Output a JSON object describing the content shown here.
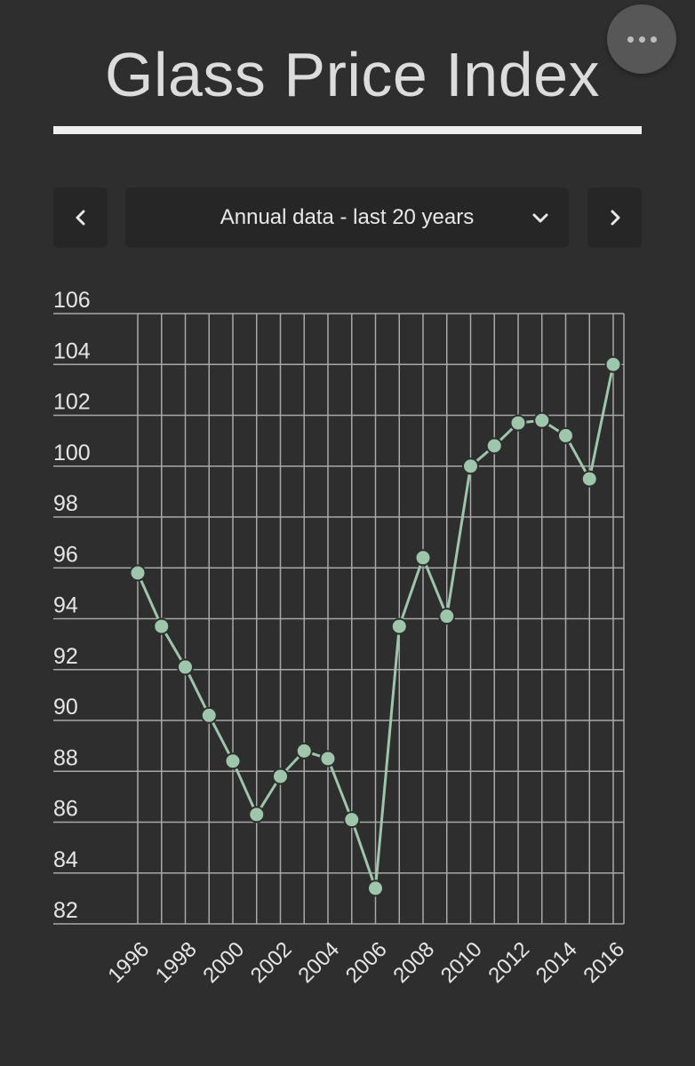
{
  "header": {
    "title": "Glass Price Index"
  },
  "controls": {
    "period_label": "Annual data - last 20 years",
    "prev_icon": "chevron-left-icon",
    "next_icon": "chevron-right-icon",
    "dropdown_icon": "chevron-down-icon",
    "more_icon": "more-horizontal-icon"
  },
  "colors": {
    "background": "#2e2e2e",
    "series": "#9ec6ab",
    "grid": "#a8a8a8"
  },
  "chart_data": {
    "type": "line",
    "title": "",
    "xlabel": "",
    "ylabel": "",
    "x": [
      1996,
      1997,
      1998,
      1999,
      2000,
      2001,
      2002,
      2003,
      2004,
      2005,
      2006,
      2007,
      2008,
      2009,
      2010,
      2011,
      2012,
      2013,
      2014,
      2015,
      2016
    ],
    "series": [
      {
        "values": [
          95.8,
          93.7,
          92.1,
          90.2,
          88.4,
          86.3,
          87.8,
          88.8,
          88.5,
          86.1,
          83.4,
          93.7,
          96.4,
          94.1,
          100.0,
          100.8,
          101.7,
          101.8,
          101.2,
          99.5,
          104.0
        ]
      }
    ],
    "x_ticks": [
      "1996",
      "1998",
      "2000",
      "2002",
      "2004",
      "2006",
      "2008",
      "2010",
      "2012",
      "2014",
      "2016"
    ],
    "y_ticks": [
      "82",
      "84",
      "86",
      "88",
      "90",
      "92",
      "94",
      "96",
      "98",
      "100",
      "102",
      "104",
      "106"
    ],
    "xlim": [
      1996,
      2016
    ],
    "ylim": [
      82,
      106
    ],
    "grid": true,
    "legend": "none"
  }
}
